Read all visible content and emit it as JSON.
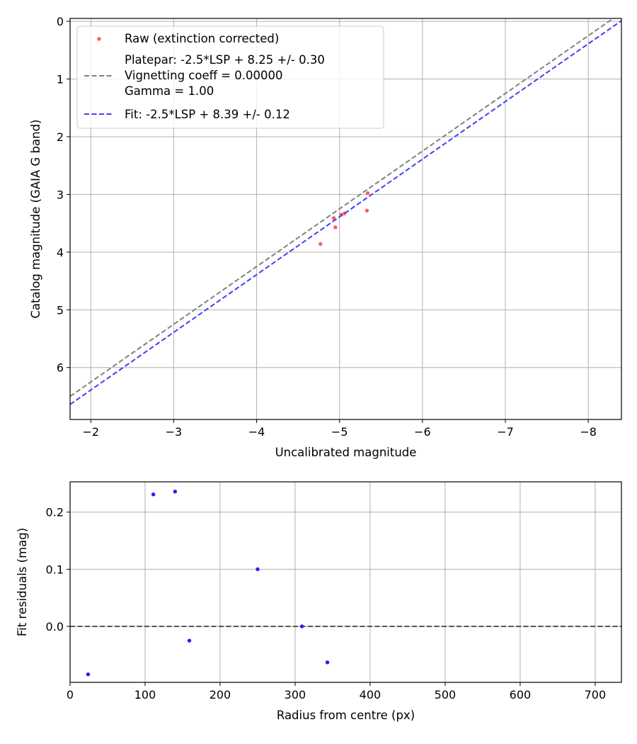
{
  "chart_data": [
    {
      "type": "scatter",
      "xlabel": "Uncalibrated magnitude",
      "ylabel": "Catalog magnitude (GAIA G band)",
      "xlim": [
        -1.75,
        -8.4
      ],
      "ylim": [
        6.9,
        -0.05
      ],
      "x_inverted": true,
      "y_inverted": true,
      "grid": true,
      "xticks": [
        -2,
        -3,
        -4,
        -5,
        -6,
        -7,
        -8
      ],
      "xtick_labels": [
        "−2",
        "−3",
        "−4",
        "−5",
        "−6",
        "−7",
        "−8"
      ],
      "yticks": [
        0,
        1,
        2,
        3,
        4,
        5,
        6
      ],
      "ytick_labels": [
        "0",
        "1",
        "2",
        "3",
        "4",
        "5",
        "6"
      ],
      "legend_position": "top-left",
      "series": [
        {
          "name": "Raw (extinction corrected)",
          "kind": "scatter",
          "color": "#ff5a5a",
          "points": [
            {
              "x": -4.77,
              "y": 3.86
            },
            {
              "x": -4.93,
              "y": 3.41
            },
            {
              "x": -4.95,
              "y": 3.57
            },
            {
              "x": -5.02,
              "y": 3.35
            },
            {
              "x": -5.06,
              "y": 3.33
            },
            {
              "x": -5.33,
              "y": 3.28
            },
            {
              "x": -5.34,
              "y": 2.98
            }
          ]
        },
        {
          "name": "Platepar: -2.5*LSP + 8.25 +/- 0.30",
          "name_lines": [
            "Platepar: -2.5*LSP + 8.25 +/- 0.30",
            "Vignetting coeff = 0.00000",
            "Gamma = 1.00"
          ],
          "kind": "line",
          "color": "#808080",
          "dash": true,
          "slope": 1,
          "intercept": 8.25
        },
        {
          "name": "Fit: -2.5*LSP + 8.39 +/- 0.12",
          "kind": "line",
          "color": "#4040ee",
          "dash": true,
          "slope": 1,
          "intercept": 8.39
        }
      ]
    },
    {
      "type": "scatter",
      "xlabel": "Radius from centre (px)",
      "ylabel": "Fit residuals (mag)",
      "xlim": [
        0,
        735
      ],
      "ylim": [
        -0.098,
        0.253
      ],
      "grid": true,
      "xticks": [
        0,
        100,
        200,
        300,
        400,
        500,
        600,
        700
      ],
      "xtick_labels": [
        "0",
        "100",
        "200",
        "300",
        "400",
        "500",
        "600",
        "700"
      ],
      "yticks": [
        0.0,
        0.1,
        0.2
      ],
      "ytick_labels": [
        "0.0",
        "0.1",
        "0.2"
      ],
      "reference_line": {
        "y": 0,
        "color": "#555555",
        "dash": true
      },
      "series": [
        {
          "kind": "scatter",
          "color": "#2222ee",
          "points": [
            {
              "x": 24,
              "y": -0.084
            },
            {
              "x": 111,
              "y": 0.231
            },
            {
              "x": 140,
              "y": 0.236
            },
            {
              "x": 159,
              "y": -0.025
            },
            {
              "x": 250,
              "y": 0.1
            },
            {
              "x": 309,
              "y": 0.0
            },
            {
              "x": 343,
              "y": -0.063
            }
          ]
        }
      ]
    }
  ]
}
